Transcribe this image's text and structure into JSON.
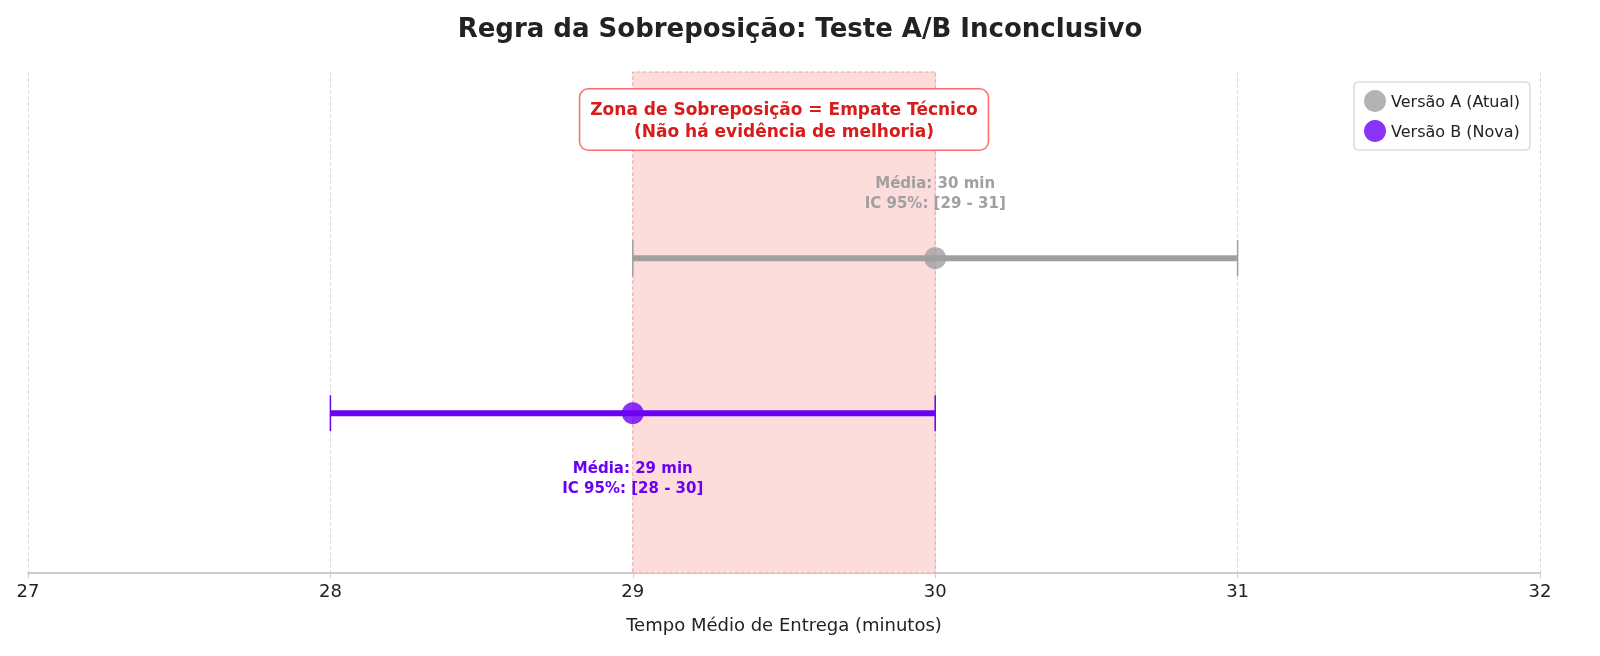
{
  "chart_data": {
    "type": "scatter",
    "orientation": "horizontal",
    "title": "Regra da Sobreposição: Teste A/B Inconclusivo",
    "xlabel": "Tempo Médio de Entrega (minutos)",
    "categories": [
      null,
      null
    ],
    "xlim": [
      27,
      32
    ],
    "xticks": [
      27,
      28,
      29,
      30,
      31,
      32
    ],
    "grid": "x",
    "legend": "top right",
    "marker": "circle",
    "series": [
      {
        "name": "Versão A (Atual)",
        "color": "#a0a0a0",
        "values": [
          30,
          null
        ],
        "errors": [
          1,
          null
        ]
      },
      {
        "name": "Versão B (Nova)",
        "color": "#6a00f4",
        "values": [
          null,
          29
        ],
        "errors": [
          null,
          1
        ]
      }
    ],
    "bands": [
      {
        "axis": "x",
        "from": 29,
        "to": 30,
        "label": "Zona de Sobreposição = Empate Técnico\n(Não há evidência de melhoria)",
        "color": "#fddcdc"
      }
    ],
    "annotations": [
      {
        "text": "Média: 30 min\nIC 95%: [29 - 31]",
        "x": 30
      },
      {
        "text": "Média: 29 min\nIC 95%: [28 - 30]",
        "x": 29
      }
    ]
  }
}
